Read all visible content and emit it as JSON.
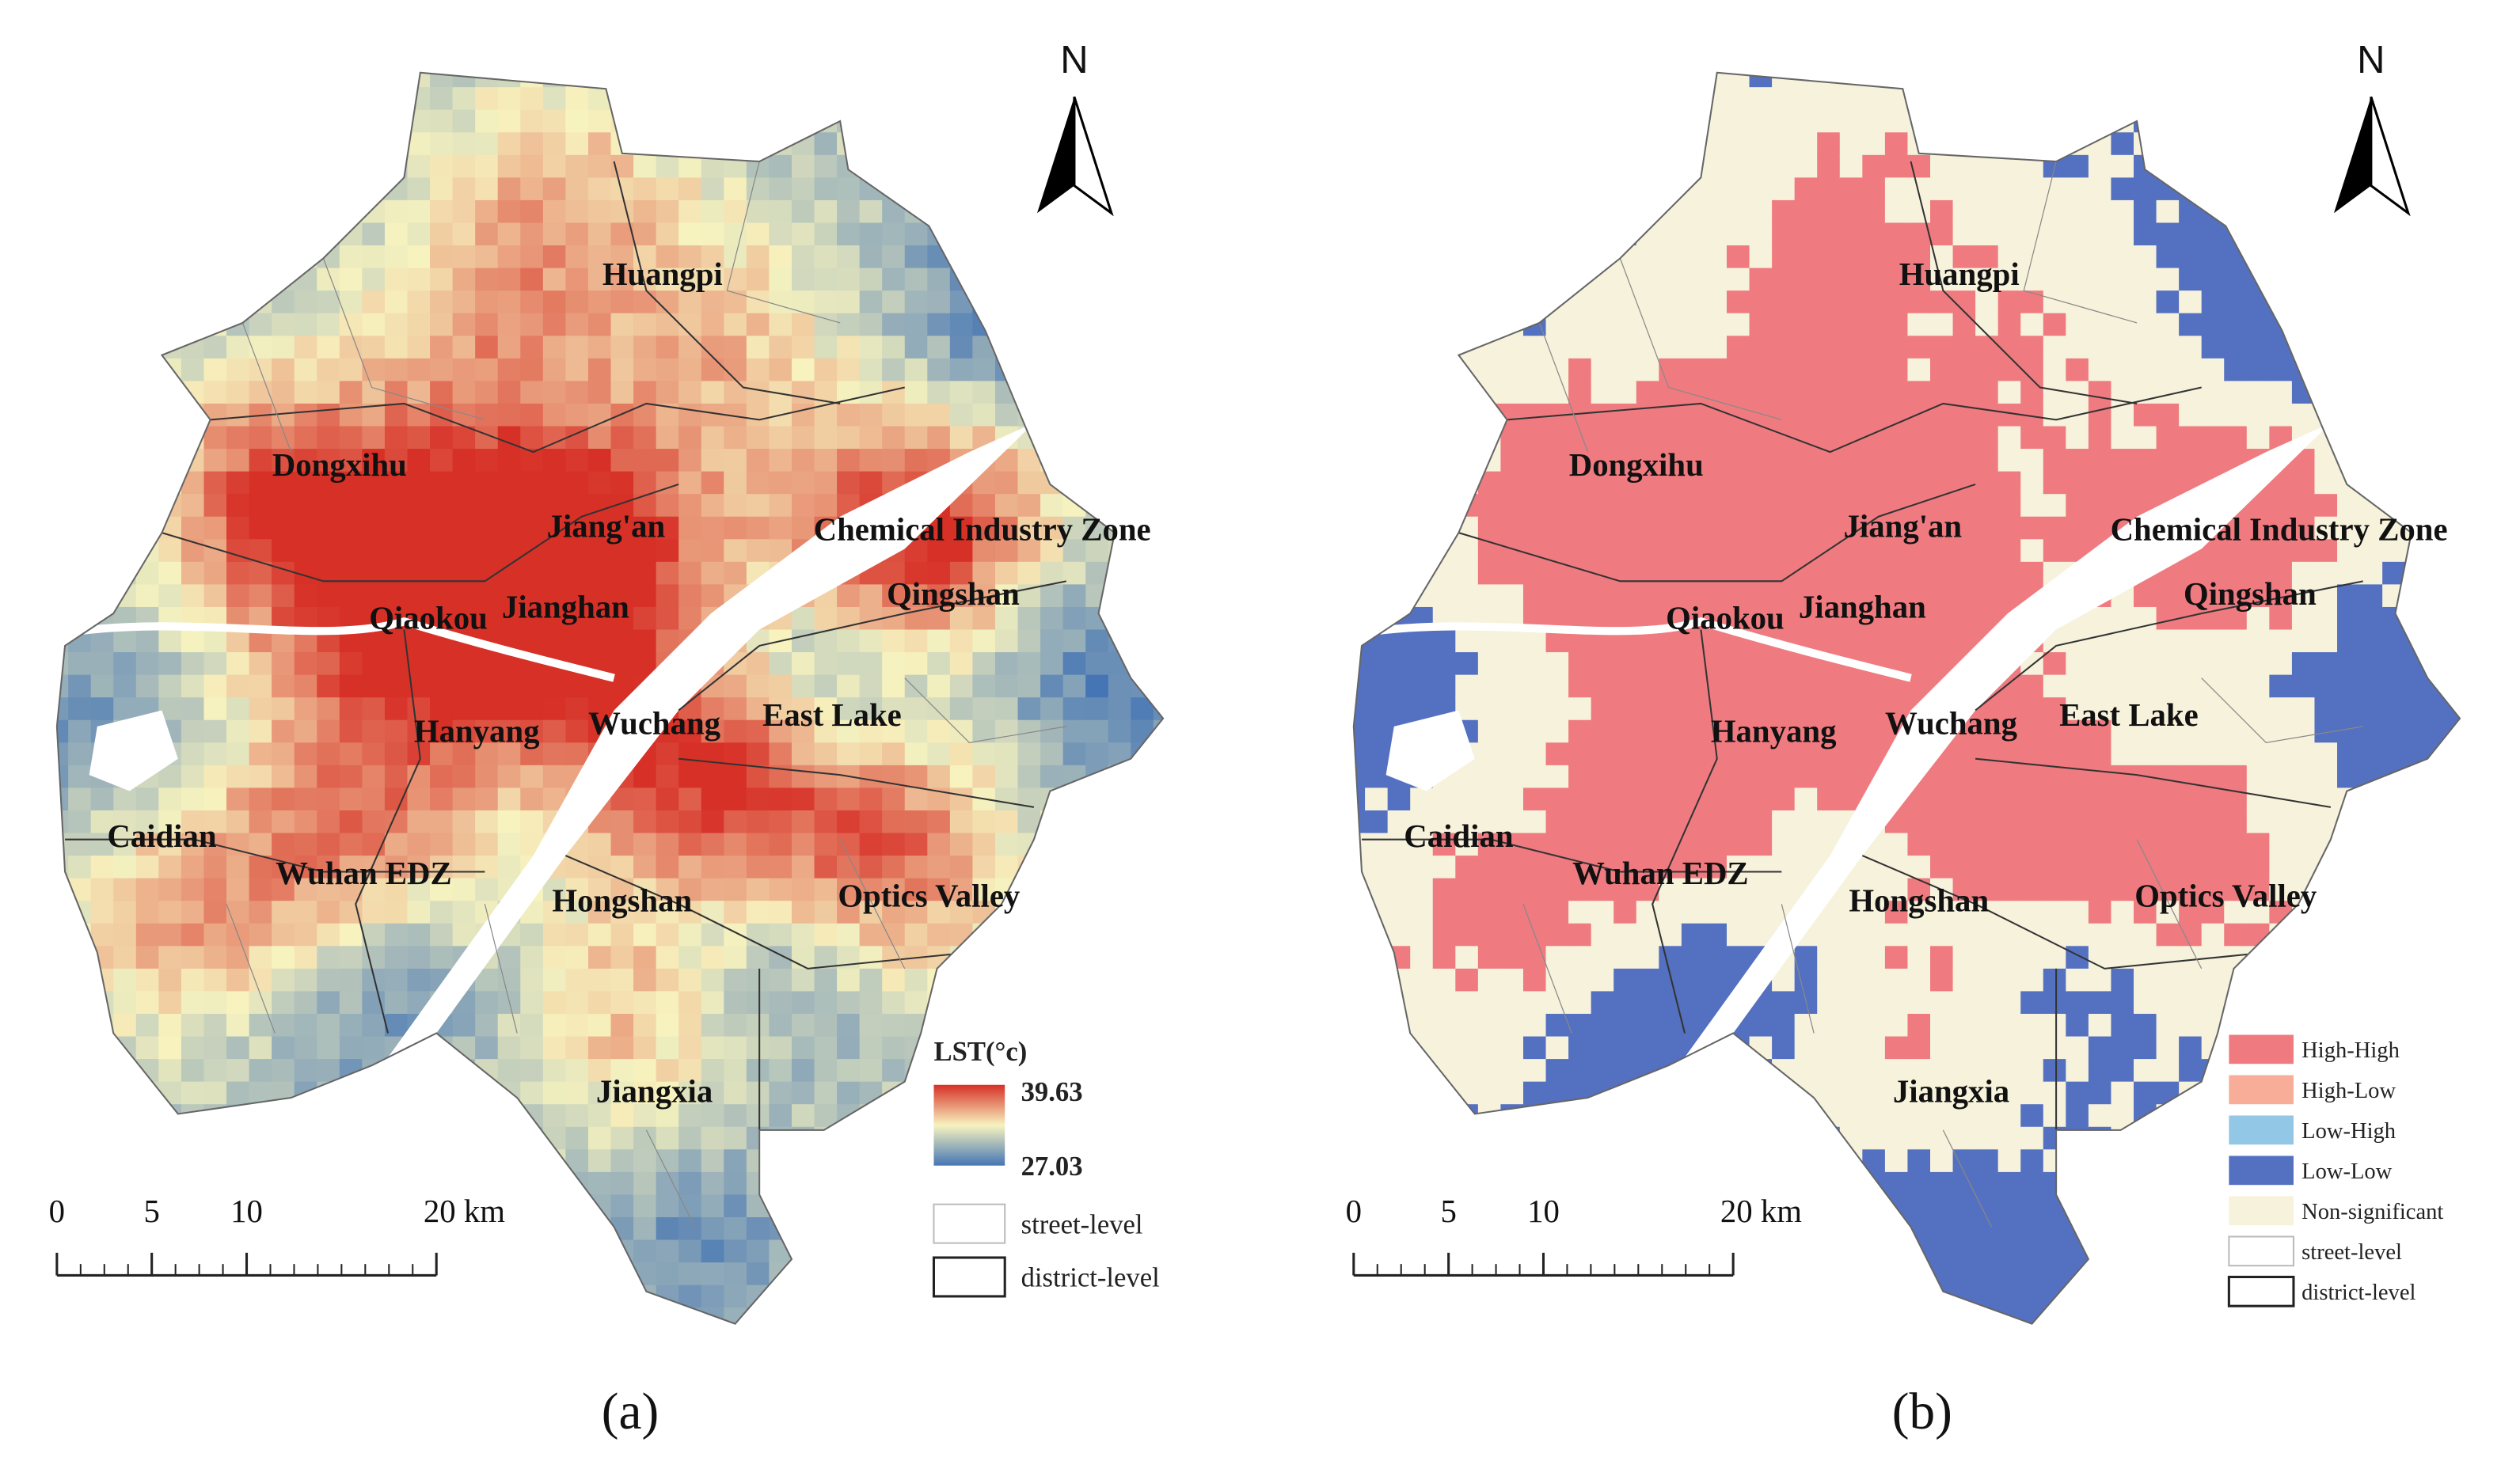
{
  "north": "N",
  "labels": [
    "Huangpi",
    "Dongxihu",
    "Jiang'an",
    "Chemical Industry Zone",
    "Qiaokou",
    "Jianghan",
    "Qingshan",
    "Hanyang",
    "Wuchang",
    "East Lake",
    "Caidian",
    "Wuhan EDZ",
    "Hongshan",
    "Optics Valley",
    "Jiangxia"
  ],
  "scale_bar": {
    "ticks": [
      0,
      5,
      10,
      {
        "value": 20,
        "label": "20 km"
      }
    ]
  },
  "panel_a": {
    "legend_title": "LST(°c)",
    "max": 39.63,
    "min": 27.03,
    "boundaries": [
      "street-level",
      "district-level"
    ],
    "caption": "(a)"
  },
  "panel_b": {
    "legend": [
      {
        "label": "High-High",
        "color": "#ef7b80"
      },
      {
        "label": "High-Low",
        "color": "#f7ad98"
      },
      {
        "label": "Low-High",
        "color": "#93c7e6"
      },
      {
        "label": "Low-Low",
        "color": "#5470c0"
      },
      {
        "label": "Non-significant",
        "color": "#f6f2dc"
      }
    ],
    "boundaries": [
      "street-level",
      "district-level"
    ],
    "caption": "(b)"
  }
}
